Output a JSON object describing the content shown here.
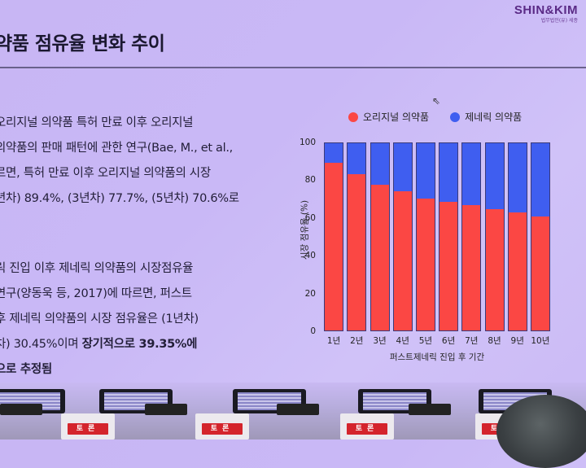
{
  "logo": {
    "brand": "SHIN&KIM",
    "sub": "법무법인(유) 세종"
  },
  "title": "약품 점유율 변화 추이",
  "paragraph1": {
    "lines": [
      "오리지널 의약품 특허 만료 이후 오리지널",
      "의약품의 판매 패턴에 관한 연구(Bae, M., et al.,",
      "르면, 특허 만료 이후 오리지널 의약품의 시장",
      "년차) 89.4%, (3년차) 77.7%, (5년차) 70.6%로"
    ]
  },
  "paragraph2": {
    "lines": [
      "릭 진입 이후 제네릭 의약품의 시장점유율",
      "연구(양동욱 등, 2017)에 따르면, 퍼스트",
      "후 제네릭 의약품의 시장 점유율은 (1년차)",
      "차) 30.45%이며 "
    ],
    "bold_line4": "장기적으로 39.35%에",
    "bold_line5": "으로 추정됨"
  },
  "chart_data": {
    "type": "bar",
    "stacked": true,
    "title": "",
    "xlabel": "퍼스트제네릭 진입 후 기간",
    "ylabel": "시장 점유율 (%)",
    "ylim": [
      0,
      100
    ],
    "yticks": [
      "0",
      "20",
      "40",
      "60",
      "80",
      "100"
    ],
    "categories": [
      "1년",
      "2년",
      "3년",
      "4년",
      "5년",
      "6년",
      "7년",
      "8년",
      "9년",
      "10년"
    ],
    "series": [
      {
        "name": "오리지널 의약품",
        "color": "#fb4744",
        "values": [
          89.4,
          83.5,
          77.7,
          74.5,
          70.6,
          68.9,
          66.8,
          65.0,
          63.0,
          61.0
        ]
      },
      {
        "name": "제네릭 의약품",
        "color": "#3f5ef0",
        "values": [
          10.6,
          16.5,
          22.3,
          25.5,
          29.4,
          31.1,
          33.2,
          35.0,
          37.0,
          39.0
        ]
      }
    ],
    "legend_position": "top",
    "grid": false
  },
  "audience": {
    "card_label": "토론"
  }
}
